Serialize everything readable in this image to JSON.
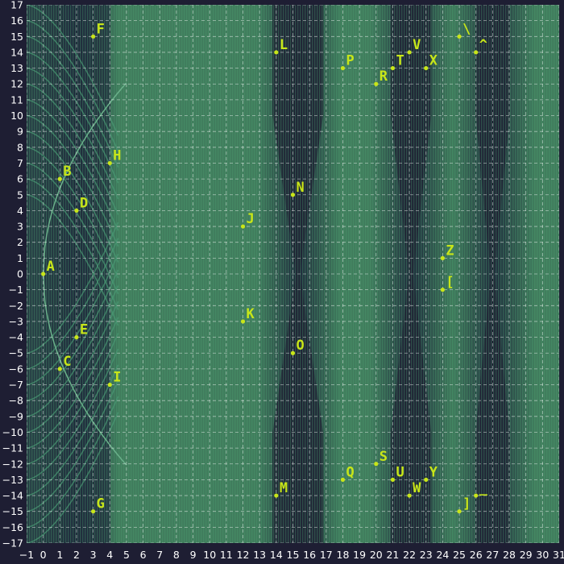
{
  "chart_data": {
    "type": "scatter",
    "title": "",
    "xlabel": "",
    "ylabel": "",
    "xlim": [
      -1,
      31
    ],
    "ylim": [
      -17,
      17
    ],
    "x_ticks": [
      "−1",
      "0",
      "1",
      "2",
      "3",
      "4",
      "5",
      "6",
      "7",
      "8",
      "9",
      "10",
      "11",
      "12",
      "13",
      "14",
      "15",
      "16",
      "17",
      "18",
      "19",
      "20",
      "21",
      "22",
      "23",
      "24",
      "25",
      "26",
      "27",
      "28",
      "29",
      "30",
      "31"
    ],
    "y_ticks": [
      "17",
      "16",
      "15",
      "14",
      "13",
      "12",
      "11",
      "10",
      "9",
      "8",
      "7",
      "6",
      "5",
      "4",
      "3",
      "2",
      "1",
      "0",
      "−1",
      "−2",
      "−3",
      "−4",
      "−5",
      "−6",
      "−7",
      "−8",
      "−9",
      "−10",
      "−11",
      "−12",
      "−13",
      "−14",
      "−15",
      "−16",
      "−17"
    ],
    "grid": true,
    "colors": {
      "background": "#1e1e33",
      "field": "#3a8a6a",
      "points": "#c8e619",
      "grid": "#ffffff"
    },
    "points": [
      {
        "label": "A",
        "x": 0,
        "y": 0
      },
      {
        "label": "B",
        "x": 1,
        "y": 6
      },
      {
        "label": "C",
        "x": 1,
        "y": -6
      },
      {
        "label": "D",
        "x": 2,
        "y": 4
      },
      {
        "label": "E",
        "x": 2,
        "y": -4
      },
      {
        "label": "F",
        "x": 3,
        "y": 15
      },
      {
        "label": "G",
        "x": 3,
        "y": -15
      },
      {
        "label": "H",
        "x": 4,
        "y": 7
      },
      {
        "label": "I",
        "x": 4,
        "y": -7
      },
      {
        "label": "J",
        "x": 12,
        "y": 3
      },
      {
        "label": "K",
        "x": 12,
        "y": -3
      },
      {
        "label": "L",
        "x": 14,
        "y": 14
      },
      {
        "label": "M",
        "x": 14,
        "y": -14
      },
      {
        "label": "N",
        "x": 15,
        "y": 5
      },
      {
        "label": "O",
        "x": 15,
        "y": -5
      },
      {
        "label": "P",
        "x": 18,
        "y": 13
      },
      {
        "label": "Q",
        "x": 18,
        "y": -13
      },
      {
        "label": "R",
        "x": 20,
        "y": 12
      },
      {
        "label": "S",
        "x": 20,
        "y": -12
      },
      {
        "label": "T",
        "x": 21,
        "y": 13
      },
      {
        "label": "U",
        "x": 21,
        "y": -13
      },
      {
        "label": "V",
        "x": 22,
        "y": 14
      },
      {
        "label": "W",
        "x": 22,
        "y": -14
      },
      {
        "label": "X",
        "x": 23,
        "y": 13
      },
      {
        "label": "Y",
        "x": 23,
        "y": -13
      },
      {
        "label": "Z",
        "x": 24,
        "y": 1
      },
      {
        "label": "[",
        "x": 24,
        "y": -1
      },
      {
        "label": "\\",
        "x": 25,
        "y": 15
      },
      {
        "label": "]",
        "x": 25,
        "y": -15
      },
      {
        "label": "^",
        "x": 26,
        "y": 14
      },
      {
        "label": "_",
        "x": 26,
        "y": -14
      }
    ]
  }
}
